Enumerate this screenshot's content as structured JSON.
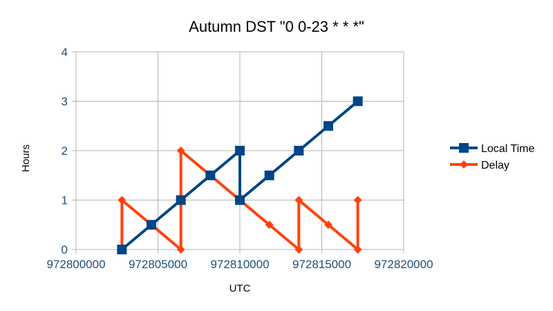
{
  "chart_data": {
    "type": "scatter",
    "title": "Autumn DST \"0 0-23 * * *\"",
    "xlabel": "UTC",
    "ylabel": "Hours",
    "xlim": [
      972800000,
      972820000
    ],
    "ylim": [
      0,
      4
    ],
    "x_ticks": [
      "972800000",
      "972805000",
      "972810000",
      "972815000",
      "972820000"
    ],
    "y_ticks": [
      "0",
      "1",
      "2",
      "3",
      "4"
    ],
    "grid": true,
    "legend_position": "right",
    "series": [
      {
        "name": "Local Time",
        "color": "#004586",
        "marker": "square",
        "points": [
          [
            972802800,
            0
          ],
          [
            972804600,
            0.5
          ],
          [
            972806400,
            1
          ],
          [
            972808200,
            1.5
          ],
          [
            972810000,
            2
          ],
          [
            972810000,
            1
          ],
          [
            972811800,
            1.5
          ],
          [
            972813600,
            2
          ],
          [
            972815400,
            2.5
          ],
          [
            972817200,
            3
          ]
        ]
      },
      {
        "name": "Delay",
        "color": "#ff420e",
        "marker": "diamond",
        "points": [
          [
            972802800,
            0
          ],
          [
            972802800,
            1
          ],
          [
            972804600,
            0.5
          ],
          [
            972806400,
            0
          ],
          [
            972806400,
            2
          ],
          [
            972808200,
            1.5
          ],
          [
            972810000,
            1
          ],
          [
            972811800,
            0.5
          ],
          [
            972813600,
            0
          ],
          [
            972813600,
            1
          ],
          [
            972815400,
            0.5
          ],
          [
            972817200,
            0
          ],
          [
            972817200,
            1
          ]
        ]
      }
    ]
  }
}
